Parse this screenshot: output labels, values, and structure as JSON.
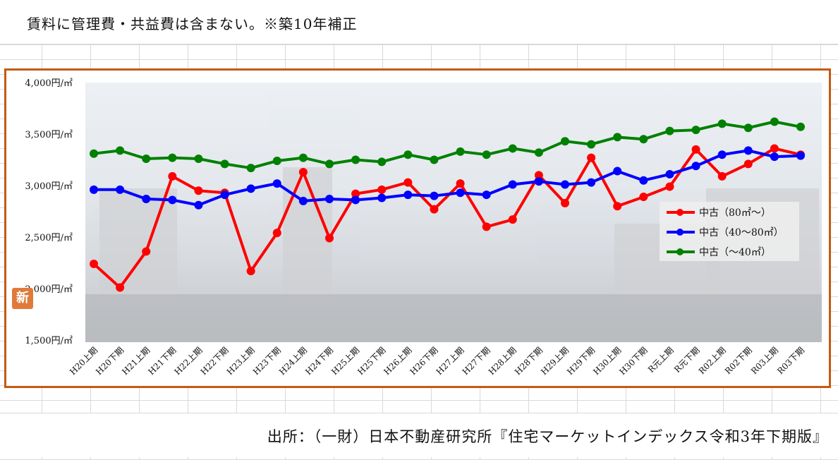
{
  "note": "賃料に管理費・共益費は含まない。※築10年補正",
  "source": "出所：（一財）日本不動産研究所『住宅マーケットインデックス令和3年下期版』",
  "badge": "新",
  "chart_data": {
    "type": "line",
    "title": "",
    "xlabel": "",
    "ylabel": "",
    "ylim": [
      1500,
      4000
    ],
    "yticks": [
      1500,
      2000,
      2500,
      3000,
      3500,
      4000
    ],
    "ytick_labels": [
      "1,500円/㎡",
      "2,000円/㎡",
      "2,500円/㎡",
      "3,000円/㎡",
      "3,500円/㎡",
      "4,000円/㎡"
    ],
    "categories": [
      "H20上期",
      "H20下期",
      "H21上期",
      "H21下期",
      "H22上期",
      "H22下期",
      "H23上期",
      "H23下期",
      "H24上期",
      "H24下期",
      "H25上期",
      "H25下期",
      "H26上期",
      "H26下期",
      "H27上期",
      "H27下期",
      "H28上期",
      "H28下期",
      "H29上期",
      "H29下期",
      "H30上期",
      "H30下期",
      "R元上期",
      "R元下期",
      "R02上期",
      "R02下期",
      "R03上期",
      "R03下期"
    ],
    "legend_position": "bottom-right",
    "grid": false,
    "series": [
      {
        "name": "中古（80㎡～）",
        "color": "#ff0000",
        "values": [
          2240,
          2010,
          2360,
          3090,
          2950,
          2930,
          2170,
          2540,
          3130,
          2490,
          2920,
          2960,
          3030,
          2770,
          3020,
          2600,
          2670,
          3100,
          2830,
          3270,
          2800,
          2890,
          2990,
          3350,
          3090,
          3210,
          3360,
          3300
        ]
      },
      {
        "name": "中古（40～80㎡）",
        "color": "#0000ff",
        "values": [
          2960,
          2960,
          2870,
          2860,
          2810,
          2910,
          2970,
          3020,
          2850,
          2870,
          2860,
          2880,
          2910,
          2900,
          2930,
          2910,
          3010,
          3040,
          3010,
          3030,
          3140,
          3050,
          3110,
          3190,
          3300,
          3340,
          3280,
          3290
        ]
      },
      {
        "name": "中古（～40㎡）",
        "color": "#008000",
        "values": [
          3310,
          3340,
          3260,
          3270,
          3260,
          3210,
          3170,
          3240,
          3270,
          3210,
          3250,
          3230,
          3300,
          3250,
          3330,
          3300,
          3360,
          3320,
          3430,
          3400,
          3470,
          3450,
          3530,
          3540,
          3600,
          3560,
          3620,
          3570
        ]
      }
    ]
  }
}
